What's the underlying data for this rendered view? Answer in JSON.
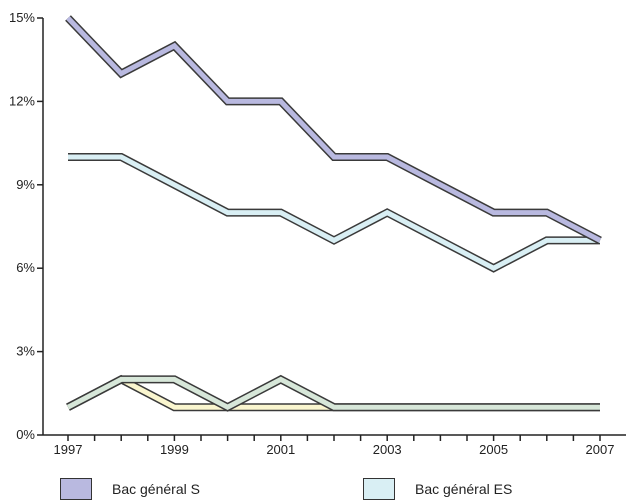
{
  "chart_data": {
    "type": "line",
    "x": [
      1997,
      1998,
      1999,
      2000,
      2001,
      2002,
      2003,
      2004,
      2005,
      2006,
      2007
    ],
    "x_tick_labels": [
      "1997",
      "1999",
      "2001",
      "2003",
      "2005",
      "2007"
    ],
    "y_tick_labels": [
      "0%",
      "3%",
      "6%",
      "9%",
      "12%",
      "15%"
    ],
    "ylim": [
      0,
      15
    ],
    "grid": false,
    "legend_position": "bottom",
    "series": [
      {
        "name": "Bac général S",
        "values": [
          15,
          13,
          14,
          12,
          12,
          10,
          10,
          9,
          8,
          8,
          7
        ],
        "color": "#b9b9e0"
      },
      {
        "name": "Bac général ES",
        "values": [
          10,
          10,
          9,
          8,
          8,
          7,
          8,
          7,
          6,
          7,
          7
        ],
        "color": "#d9eff4"
      },
      {
        "name": "",
        "values": [
          1,
          2,
          2,
          1,
          2,
          1,
          1,
          1,
          1,
          1,
          1
        ],
        "color": "#d7e7d9"
      },
      {
        "name": "",
        "values": [
          1,
          2,
          1,
          1,
          1,
          1,
          1,
          1,
          1,
          1,
          1
        ],
        "color": "#faf6cf"
      }
    ]
  }
}
